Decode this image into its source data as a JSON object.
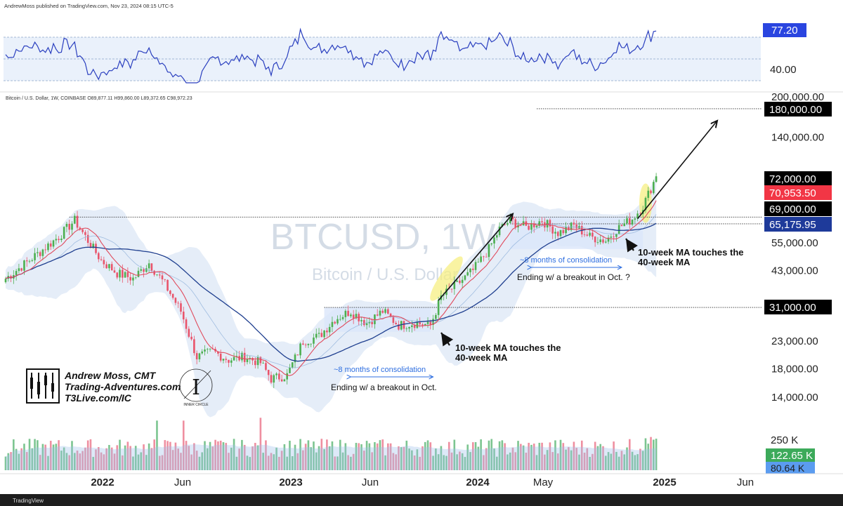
{
  "header": {
    "published": "AndrewMoss published on TradingView.com, Nov 23, 2024 08:15 UTC-5",
    "symbol_line": "Bitcoin / U.S. Dollar, 1W, COINBASE  O89,877.11  H99,860.00  L89,372.65  C98,972.23"
  },
  "watermark": {
    "symbol": "BTCUSD, 1W",
    "name": "Bitcoin / U.S. Dollar"
  },
  "branding": {
    "author": "Andrew Moss, CMT",
    "site": "Trading-Adventures.com",
    "site2": "T3Live.com/IC",
    "logo_text": "INNER CIRCLE",
    "footer": "TradingView"
  },
  "annotations": {
    "cons1": "~8 months of consolidation",
    "cons1_sub": "Ending w/ a breakout in Oct.",
    "ma1_line1": "10-week MA touches the",
    "ma1_line2": "40-week MA",
    "cons2": "~8 months of consolidation",
    "cons2_sub": "Ending w/ a breakout in Oct. ?",
    "ma2_line1": "10-week MA touches the",
    "ma2_line2": "40-week MA"
  },
  "colors": {
    "up": "#4caf50",
    "down": "#e9546b",
    "ma10": "#e04a5c",
    "ma40": "#1f3f8f",
    "band": "#c5d8f0",
    "rsi": "#2a3fbf",
    "vol_up": "#7cc590",
    "vol_down": "#ef8fa0",
    "highlight": "#f7ee7a"
  },
  "chart_data": {
    "type": "candlestick",
    "x_labels": [
      "2022",
      "Jun",
      "2023",
      "Jun",
      "2024",
      "May",
      "2025",
      "Jun"
    ],
    "price_axis_labels": [
      "200,000.00",
      "140,000.00",
      "55,000.00",
      "43,000.00",
      "23,000.00",
      "18,000.00",
      "14,000.00"
    ],
    "price_tags": [
      {
        "value": "180,000.00",
        "color": "#000000"
      },
      {
        "value": "72,000.00",
        "color": "#000000"
      },
      {
        "value": "70,953.50",
        "color": "#f23645"
      },
      {
        "value": "69,000.00",
        "color": "#000000"
      },
      {
        "value": "65,175.95",
        "color": "#1e3a9a"
      },
      {
        "value": "31,000.00",
        "color": "#000000"
      }
    ],
    "levels": [
      180000,
      69000,
      31000
    ],
    "price_path": [
      [
        0,
        40000
      ],
      [
        10,
        48000
      ],
      [
        20,
        58000
      ],
      [
        26,
        67000
      ],
      [
        30,
        58000
      ],
      [
        36,
        47000
      ],
      [
        42,
        42000
      ],
      [
        48,
        40000
      ],
      [
        54,
        46000
      ],
      [
        60,
        38000
      ],
      [
        66,
        30000
      ],
      [
        72,
        20000
      ],
      [
        78,
        21000
      ],
      [
        84,
        19500
      ],
      [
        90,
        20000
      ],
      [
        96,
        19000
      ],
      [
        100,
        16500
      ],
      [
        106,
        17000
      ],
      [
        112,
        23000
      ],
      [
        118,
        24000
      ],
      [
        124,
        28000
      ],
      [
        130,
        30000
      ],
      [
        136,
        27000
      ],
      [
        142,
        30000
      ],
      [
        148,
        26500
      ],
      [
        154,
        27000
      ],
      [
        160,
        26500
      ],
      [
        164,
        34000
      ],
      [
        170,
        38000
      ],
      [
        176,
        43000
      ],
      [
        182,
        52000
      ],
      [
        186,
        62000
      ],
      [
        190,
        67000
      ],
      [
        196,
        63000
      ],
      [
        202,
        67000
      ],
      [
        208,
        60000
      ],
      [
        214,
        64000
      ],
      [
        220,
        58000
      ],
      [
        226,
        56000
      ],
      [
        230,
        62000
      ],
      [
        236,
        68000
      ],
      [
        240,
        76000
      ],
      [
        245,
        99000
      ]
    ],
    "rsi": {
      "last": "77.20",
      "level": "40.00"
    },
    "volume": {
      "label": "250 K",
      "last": "122.65 K",
      "ma": "80.64 K"
    }
  }
}
